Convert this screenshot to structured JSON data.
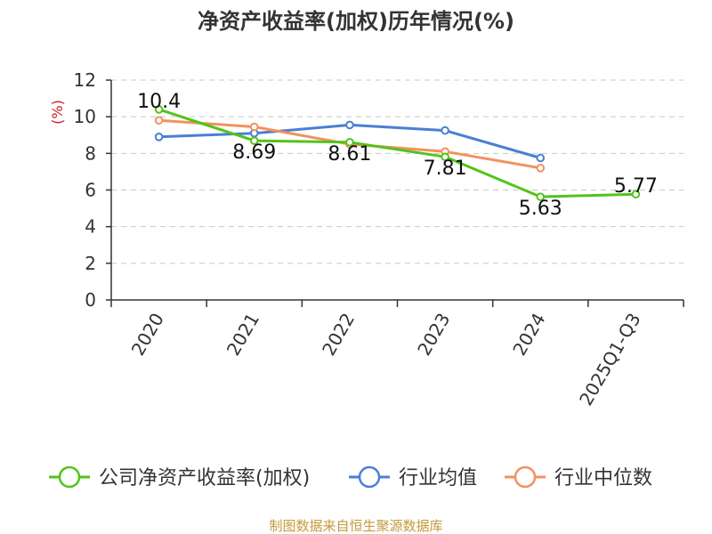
{
  "chart_data": {
    "type": "line",
    "title": "净资产收益率(加权)历年情况(%)",
    "unit_label": "(%)",
    "categories": [
      "2020",
      "2021",
      "2022",
      "2023",
      "2024",
      "2025Q1-Q3"
    ],
    "ylim": [
      0,
      12
    ],
    "yticks": [
      0,
      2,
      4,
      6,
      8,
      10,
      12
    ],
    "grid": true,
    "legend_position": "bottom",
    "series": [
      {
        "name": "公司净资产收益率(加权)",
        "color": "#52c41a",
        "values": [
          10.4,
          8.69,
          8.61,
          7.81,
          5.63,
          5.77
        ],
        "labels": [
          "10.4",
          "8.69",
          "8.61",
          "7.81",
          "5.63",
          "5.77"
        ]
      },
      {
        "name": "行业均值",
        "color": "#4a7fd4",
        "values": [
          8.9,
          9.1,
          9.55,
          9.25,
          7.75,
          null
        ]
      },
      {
        "name": "行业中位数",
        "color": "#f4915e",
        "values": [
          9.8,
          9.45,
          8.5,
          8.1,
          7.2,
          null
        ]
      }
    ]
  },
  "footer": {
    "source": "制图数据来自恒生聚源数据库"
  }
}
